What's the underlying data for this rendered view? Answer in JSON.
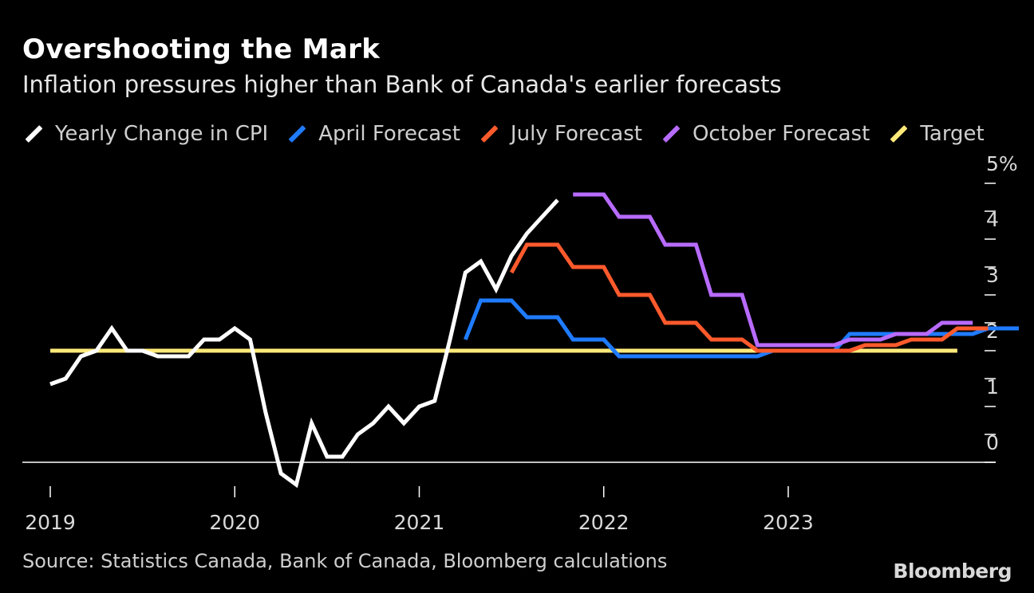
{
  "title": "Overshooting the Mark",
  "subtitle": "Inflation pressures higher than Bank of Canada's earlier forecasts",
  "source": "Source: Statistics Canada, Bank of Canada, Bloomberg calculations",
  "brand": "Bloomberg",
  "legend": [
    {
      "label": "Yearly Change in CPI",
      "color": "#ffffff"
    },
    {
      "label": "April Forecast",
      "color": "#1f7bff"
    },
    {
      "label": "July Forecast",
      "color": "#ff5a2c"
    },
    {
      "label": "October Forecast",
      "color": "#b86bff"
    },
    {
      "label": "Target",
      "color": "#ffe97a"
    }
  ],
  "chart_data": {
    "type": "line",
    "title": "Overshooting the Mark",
    "subtitle": "Inflation pressures higher than Bank of Canada's earlier forecasts",
    "x_unit": "month",
    "xlim": [
      "2019-01",
      "2023-12"
    ],
    "ylim": [
      -0.4,
      5.1
    ],
    "ylabel_suffix": "%",
    "x_ticks": [
      {
        "label": "2019",
        "month": "2019-01"
      },
      {
        "label": "2020",
        "month": "2020-01"
      },
      {
        "label": "2021",
        "month": "2021-01"
      },
      {
        "label": "2022",
        "month": "2022-01"
      },
      {
        "label": "2023",
        "month": "2023-01"
      }
    ],
    "y_ticks": [
      {
        "label": "0",
        "value": 0
      },
      {
        "label": "1",
        "value": 1
      },
      {
        "label": "2",
        "value": 2
      },
      {
        "label": "3",
        "value": 3
      },
      {
        "label": "4",
        "value": 4
      },
      {
        "label": "5%",
        "value": 5
      }
    ],
    "series": [
      {
        "name": "Yearly Change in CPI",
        "color": "#ffffff",
        "start": "2019-01",
        "values": [
          1.4,
          1.5,
          1.9,
          2.0,
          2.4,
          2.0,
          2.0,
          1.9,
          1.9,
          1.9,
          2.2,
          2.2,
          2.4,
          2.2,
          0.9,
          -0.2,
          -0.4,
          0.7,
          0.1,
          0.1,
          0.5,
          0.7,
          1.0,
          0.7,
          1.0,
          1.1,
          2.2,
          3.4,
          3.6,
          3.1,
          3.7,
          4.1,
          4.4,
          4.7
        ]
      },
      {
        "name": "April Forecast",
        "color": "#1f7bff",
        "start": "2021-04",
        "values": [
          2.2,
          2.9,
          2.9,
          2.9,
          2.6,
          2.6,
          2.6,
          2.2,
          2.2,
          2.2,
          1.9,
          1.9,
          1.9,
          1.9,
          1.9,
          1.9,
          1.9,
          1.9,
          1.9,
          1.9,
          2.0,
          2.0,
          2.0,
          2.0,
          2.0,
          2.3,
          2.3,
          2.3,
          2.3,
          2.3,
          2.3,
          2.3,
          2.3,
          2.3,
          2.4,
          2.4,
          2.4
        ]
      },
      {
        "name": "July Forecast",
        "color": "#ff5a2c",
        "start": "2021-07",
        "values": [
          3.4,
          3.9,
          3.9,
          3.9,
          3.5,
          3.5,
          3.5,
          3.0,
          3.0,
          3.0,
          2.5,
          2.5,
          2.5,
          2.2,
          2.2,
          2.2,
          2.0,
          2.0,
          2.0,
          2.0,
          2.0,
          2.0,
          2.0,
          2.1,
          2.1,
          2.1,
          2.2,
          2.2,
          2.2,
          2.4,
          2.4,
          2.4
        ]
      },
      {
        "name": "October Forecast",
        "color": "#b86bff",
        "start": "2021-11",
        "values": [
          4.8,
          4.8,
          4.8,
          4.4,
          4.4,
          4.4,
          3.9,
          3.9,
          3.9,
          3.0,
          3.0,
          3.0,
          2.1,
          2.1,
          2.1,
          2.1,
          2.1,
          2.1,
          2.2,
          2.2,
          2.2,
          2.3,
          2.3,
          2.3,
          2.5,
          2.5,
          2.5
        ]
      },
      {
        "name": "Target",
        "color": "#ffe97a",
        "start": "2019-01",
        "values": [
          2.0
        ],
        "constant": true,
        "end": "2023-12"
      }
    ]
  }
}
